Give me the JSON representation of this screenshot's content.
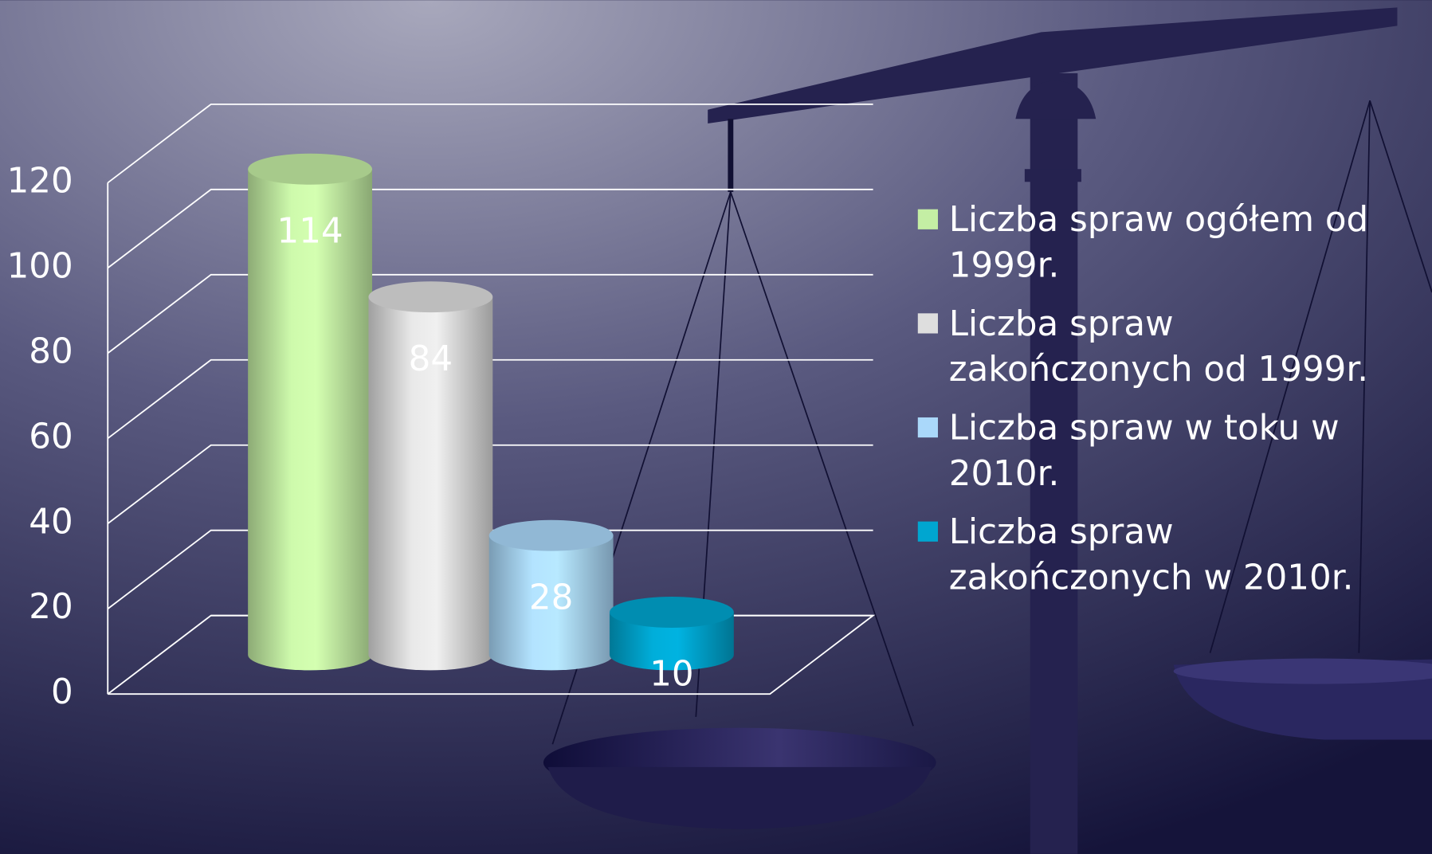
{
  "chart_data": {
    "type": "bar3d",
    "categories": [
      null
    ],
    "series": [
      {
        "name": "Liczba spraw ogółem od 1999r.",
        "color": "#c4eea4",
        "values": [
          114
        ]
      },
      {
        "name": "Liczba spraw zakończonych od 1999r.",
        "color": "#dedede",
        "values": [
          84
        ]
      },
      {
        "name": "Liczba spraw w toku w 2010r.",
        "color": "#aad8fa",
        "values": [
          28
        ]
      },
      {
        "name": "Liczba spraw zakończonych w 2010r.",
        "color": "#00a6d0",
        "values": [
          10
        ]
      }
    ],
    "ylim": [
      0,
      120
    ],
    "yticks": [
      0,
      20,
      40,
      60,
      80,
      100,
      120
    ],
    "grid": true,
    "legend": "right"
  }
}
